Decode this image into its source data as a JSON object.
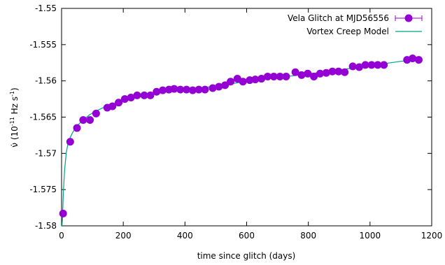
{
  "chart_data": {
    "type": "scatter",
    "xlabel": "time since glitch (days)",
    "ylabel": {
      "prefix": "ν̇ (10",
      "exp1": "-11",
      "mid": " Hz s",
      "exp2": "-1",
      "suffix": ")"
    },
    "xlim": [
      0,
      1200
    ],
    "ylim": [
      -1.58,
      -1.55
    ],
    "x_ticks": [
      0,
      200,
      400,
      600,
      800,
      1000,
      1200
    ],
    "x_tick_labels": [
      "0",
      "200",
      "400",
      "600",
      "800",
      "1000",
      "1200"
    ],
    "y_ticks": [
      -1.58,
      -1.575,
      -1.57,
      -1.565,
      -1.56,
      -1.555,
      -1.55
    ],
    "y_tick_labels": [
      "-1.58",
      "-1.575",
      "-1.57",
      "-1.565",
      "-1.56",
      "-1.555",
      "-1.55"
    ],
    "grid": false,
    "legend_position": "top-right",
    "series": [
      {
        "name": "Vela Glitch at MJD56556",
        "style": "points-with-errorbars",
        "color": "#9400d3",
        "x": [
          5,
          28,
          50,
          70,
          92,
          112,
          148,
          165,
          185,
          205,
          225,
          245,
          268,
          288,
          308,
          328,
          348,
          365,
          385,
          405,
          425,
          445,
          465,
          490,
          510,
          530,
          548,
          570,
          588,
          610,
          628,
          648,
          668,
          688,
          708,
          728,
          758,
          778,
          798,
          818,
          838,
          858,
          878,
          898,
          918,
          944,
          965,
          985,
          1005,
          1025,
          1045,
          1120,
          1138,
          1158
        ],
        "y": [
          -1.5783,
          -1.5684,
          -1.5665,
          -1.5654,
          -1.5654,
          -1.5645,
          -1.5637,
          -1.5635,
          -1.563,
          -1.5625,
          -1.5623,
          -1.562,
          -1.562,
          -1.562,
          -1.5615,
          -1.5613,
          -1.5612,
          -1.5611,
          -1.5612,
          -1.5612,
          -1.5613,
          -1.5612,
          -1.5612,
          -1.561,
          -1.5608,
          -1.5606,
          -1.5601,
          -1.5597,
          -1.5601,
          -1.5599,
          -1.5598,
          -1.5597,
          -1.5594,
          -1.5594,
          -1.5594,
          -1.5594,
          -1.5588,
          -1.5592,
          -1.559,
          -1.5594,
          -1.559,
          -1.5589,
          -1.5587,
          -1.5587,
          -1.5588,
          -1.558,
          -1.5581,
          -1.5578,
          -1.5578,
          -1.5578,
          -1.5578,
          -1.5571,
          -1.5569,
          -1.5571
        ]
      },
      {
        "name": "Vortex Creep Model",
        "style": "line",
        "color": "#00a08a",
        "x": [
          0,
          3,
          6,
          10,
          15,
          20,
          28,
          35,
          45,
          55,
          70,
          90,
          110,
          140,
          180,
          220,
          260,
          300,
          350,
          400,
          450,
          500,
          550,
          600,
          650,
          700,
          750,
          800,
          850,
          900,
          950,
          1000,
          1050,
          1100,
          1150,
          1165
        ],
        "y": [
          -1.581,
          -1.5788,
          -1.5752,
          -1.5722,
          -1.57,
          -1.5688,
          -1.5678,
          -1.5672,
          -1.5665,
          -1.566,
          -1.5654,
          -1.5647,
          -1.5642,
          -1.5636,
          -1.563,
          -1.5625,
          -1.5621,
          -1.5617,
          -1.5614,
          -1.5612,
          -1.561,
          -1.5607,
          -1.5604,
          -1.5601,
          -1.5598,
          -1.5595,
          -1.5593,
          -1.559,
          -1.5588,
          -1.5585,
          -1.5582,
          -1.5579,
          -1.5576,
          -1.5573,
          -1.5571,
          -1.557
        ]
      }
    ]
  }
}
